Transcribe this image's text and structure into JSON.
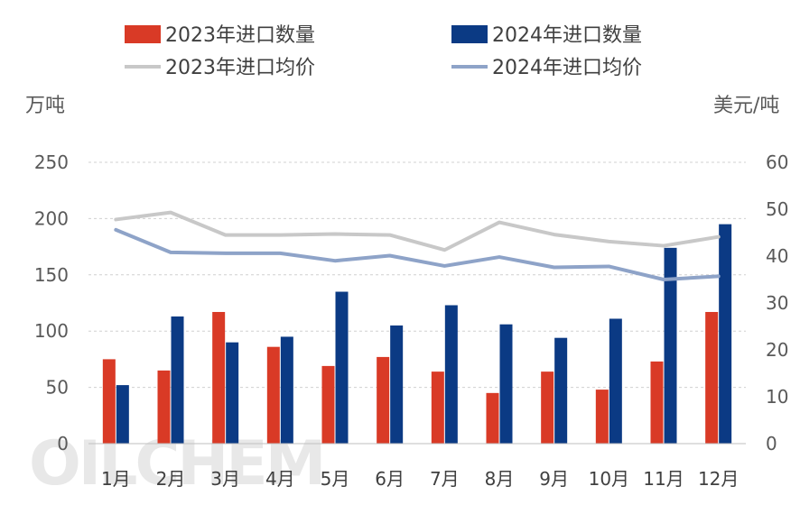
{
  "chart_data": {
    "type": "bar+line",
    "categories": [
      "1月",
      "2月",
      "3月",
      "4月",
      "5月",
      "6月",
      "7月",
      "8月",
      "9月",
      "10月",
      "11月",
      "12月"
    ],
    "series": [
      {
        "name": "2023年进口数量",
        "kind": "bar",
        "axis": "left",
        "color": "#d93a26",
        "values": [
          75,
          65,
          117,
          86,
          69,
          77,
          64,
          45,
          64,
          48,
          73,
          117
        ]
      },
      {
        "name": "2024年进口数量",
        "kind": "bar",
        "axis": "left",
        "color": "#0b3a84",
        "values": [
          52,
          113,
          90,
          95,
          135,
          105,
          123,
          106,
          94,
          111,
          174,
          195
        ]
      },
      {
        "name": "2023年进口均价",
        "kind": "line",
        "axis": "right",
        "color": "#c8c8c8",
        "values": [
          47.8,
          49.3,
          44.5,
          44.5,
          44.7,
          44.5,
          41.3,
          47.2,
          44.6,
          43.1,
          42.2,
          44.1
        ]
      },
      {
        "name": "2024年进口均价",
        "kind": "line",
        "axis": "right",
        "color": "#8ea3c8",
        "values": [
          45.6,
          40.8,
          40.6,
          40.6,
          39.0,
          40.1,
          37.9,
          39.8,
          37.6,
          37.8,
          35.0,
          35.7
        ]
      }
    ],
    "y_left": {
      "label": "万吨",
      "min": 0,
      "max": 250,
      "ticks": [
        0,
        50,
        100,
        150,
        200,
        250
      ]
    },
    "y_right": {
      "label": "美元/吨",
      "min": 0,
      "max": 60,
      "ticks": [
        0,
        10,
        20,
        30,
        40,
        50,
        60
      ]
    },
    "grid": true,
    "legend_position": "top"
  },
  "watermark": "OILCHEM"
}
